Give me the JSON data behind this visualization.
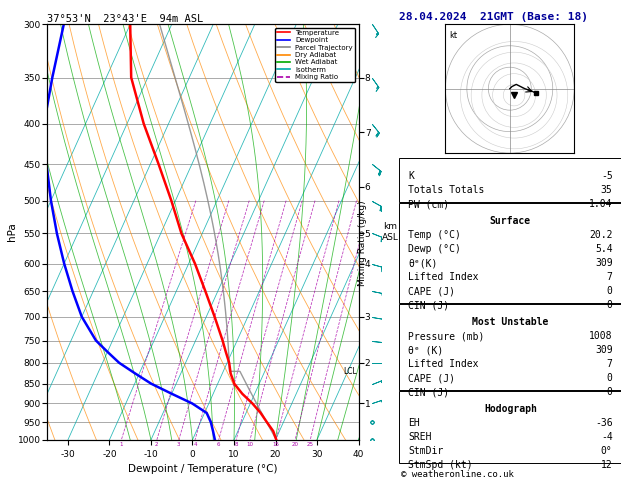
{
  "title_left": "37°53'N  23°43'E  94m ASL",
  "title_right": "28.04.2024  21GMT (Base: 18)",
  "xlabel": "Dewpoint / Temperature (°C)",
  "pressure_levels": [
    300,
    350,
    400,
    450,
    500,
    550,
    600,
    650,
    700,
    750,
    800,
    850,
    900,
    950,
    1000
  ],
  "alt_ticks": [
    1,
    2,
    3,
    4,
    5,
    6,
    7,
    8
  ],
  "alt_pressures": [
    900,
    800,
    700,
    600,
    550,
    480,
    410,
    350
  ],
  "dry_adiabat_color": "#ff8800",
  "wet_adiabat_color": "#00aa00",
  "isotherm_color": "#00aaaa",
  "mixing_ratio_color": "#aa00aa",
  "temp_profile_color": "#ff0000",
  "dewp_profile_color": "#0000ff",
  "parcel_color": "#888888",
  "stats_panel": {
    "K": "-5",
    "Totals Totals": "35",
    "PW (cm)": "1.04",
    "Surface_Temp": "20.2",
    "Surface_Dewp": "5.4",
    "Surface_theta_e": "309",
    "Surface_LI": "7",
    "Surface_CAPE": "0",
    "Surface_CIN": "0",
    "MU_Pressure": "1008",
    "MU_theta_e": "309",
    "MU_LI": "7",
    "MU_CAPE": "0",
    "MU_CIN": "0",
    "Hodo_EH": "-36",
    "Hodo_SREH": "-4",
    "Hodo_StmDir": "0°",
    "Hodo_StmSpd": "12"
  },
  "temp_sounding_p": [
    1000,
    975,
    950,
    925,
    900,
    875,
    850,
    825,
    800,
    775,
    750,
    700,
    650,
    600,
    550,
    500,
    450,
    400,
    350,
    300
  ],
  "temp_sounding_t": [
    20.2,
    18.5,
    16.0,
    13.5,
    10.5,
    7.0,
    4.0,
    2.0,
    0.5,
    -1.5,
    -3.5,
    -8.0,
    -13.0,
    -18.5,
    -25.0,
    -31.0,
    -38.0,
    -46.0,
    -54.0,
    -60.0
  ],
  "dewp_sounding_p": [
    1000,
    975,
    950,
    925,
    900,
    875,
    850,
    825,
    800,
    775,
    750,
    700,
    650,
    600,
    550,
    500,
    450,
    400,
    350,
    300
  ],
  "dewp_sounding_t": [
    5.4,
    4.0,
    2.5,
    0.5,
    -4.0,
    -10.0,
    -16.0,
    -21.0,
    -26.0,
    -30.0,
    -34.0,
    -40.0,
    -45.0,
    -50.0,
    -55.0,
    -60.0,
    -65.0,
    -70.0,
    -73.0,
    -76.0
  ],
  "lcl_pressure": 820,
  "lcl_temp": 1.5,
  "legend_items": [
    {
      "label": "Temperature",
      "color": "#ff0000",
      "ls": "-"
    },
    {
      "label": "Dewpoint",
      "color": "#0000ff",
      "ls": "-"
    },
    {
      "label": "Parcel Trajectory",
      "color": "#888888",
      "ls": "-"
    },
    {
      "label": "Dry Adiabat",
      "color": "#ff8800",
      "ls": "-"
    },
    {
      "label": "Wet Adiabat",
      "color": "#00aa00",
      "ls": "-"
    },
    {
      "label": "Isotherm",
      "color": "#00aaaa",
      "ls": "-"
    },
    {
      "label": "Mixing Ratio",
      "color": "#aa00aa",
      "ls": "--"
    }
  ],
  "copyright": "© weatheronline.co.uk",
  "P_min": 300,
  "P_max": 1000,
  "T_min": -35,
  "T_max": 40,
  "skew": 45
}
